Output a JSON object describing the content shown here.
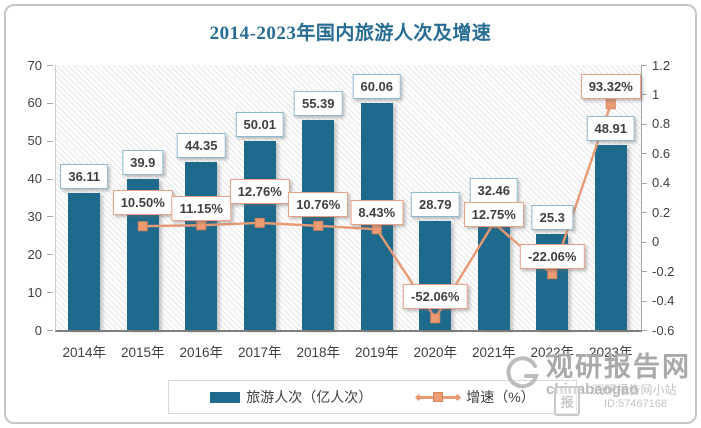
{
  "title": "2014-2023年国内旅游人次及增速",
  "chart_data": {
    "type": "bar",
    "subtype": "bar+line combo, dual axis",
    "title": "2014-2023年国内旅游人次及增速",
    "categories": [
      "2014年",
      "2015年",
      "2016年",
      "2017年",
      "2018年",
      "2019年",
      "2020年",
      "2021年",
      "2022年",
      "2023年"
    ],
    "series": [
      {
        "name": "旅游人次（亿人次）",
        "type": "bar",
        "axis": "left",
        "color": "#1E6A8D",
        "values": [
          36.11,
          39.9,
          44.35,
          50.01,
          55.39,
          60.06,
          28.79,
          32.46,
          25.3,
          48.91
        ],
        "labels": [
          "36.11",
          "39.9",
          "44.35",
          "50.01",
          "55.39",
          "60.06",
          "28.79",
          "32.46",
          "25.3",
          "48.91"
        ]
      },
      {
        "name": "增速（%）",
        "type": "line",
        "axis": "right",
        "color": "#E99A75",
        "values": [
          null,
          0.105,
          0.1115,
          0.1276,
          0.1076,
          0.0843,
          -0.5206,
          0.1275,
          -0.2206,
          0.9332
        ],
        "labels": [
          null,
          "10.50%",
          "11.15%",
          "12.76%",
          "10.76%",
          "8.43%",
          "-52.06%",
          "12.75%",
          "-22.06%",
          "93.32%"
        ]
      }
    ],
    "left_axis": {
      "min": 0,
      "max": 70,
      "step": 10,
      "tick_labels": [
        "70",
        "60",
        "50",
        "40",
        "30",
        "20",
        "10",
        "0"
      ]
    },
    "right_axis": {
      "min": -0.6,
      "max": 1.2,
      "step": 0.2,
      "tick_labels": [
        "1.2",
        "1",
        "0.8",
        "0.6",
        "0.4",
        "0.2",
        "0",
        "-0.2",
        "-0.4",
        "-0.6"
      ]
    },
    "grid": false,
    "legend_position": "bottom",
    "plot_background": "diagonal-hatch"
  },
  "legend": {
    "items": [
      {
        "label": "旅游人次（亿人次）"
      },
      {
        "label": "增速（%）"
      }
    ]
  },
  "colors": {
    "bar": "#1E6A8D",
    "line": "#E99A75",
    "line_marker": "#EC9B73",
    "bar_label_border": "#8FB9D0",
    "line_label_border": "#E8A184",
    "title_text": "#276C93",
    "axis_text": "#404040",
    "watermark_text": "#a9a9a9"
  },
  "watermark": {
    "brand": "观研报告网",
    "site": "chinabaogao",
    "overlay": "观研报告网小站",
    "id_text": "ID:57467168",
    "badge": "报"
  }
}
